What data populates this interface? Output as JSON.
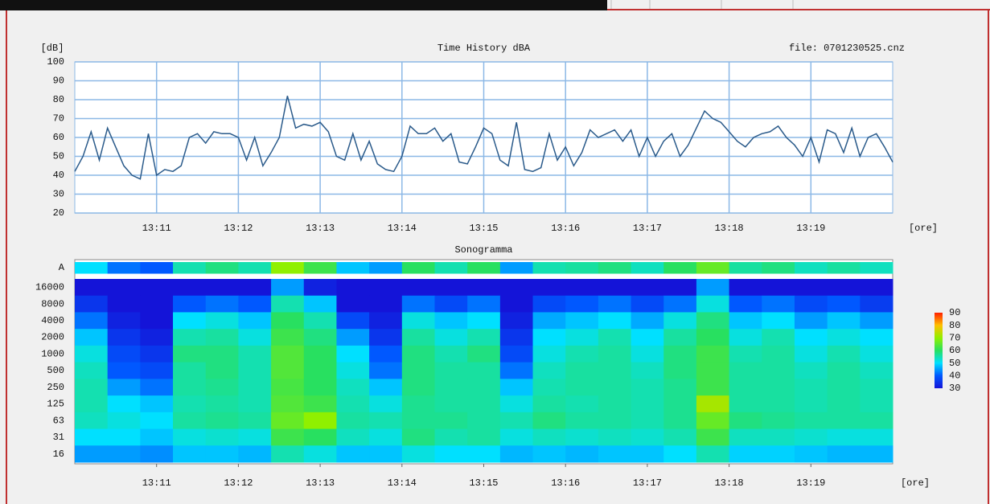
{
  "chart_data": [
    {
      "type": "line",
      "title": "Time History dBA",
      "ylabel": "[dB]",
      "xlabel": "[ore]",
      "annotation": "file: 0701230525.cnz",
      "color": "#2a5a8a",
      "grid": true,
      "x": [
        790,
        790.1,
        790.2,
        790.3,
        790.4,
        790.5,
        790.6,
        790.7,
        790.8,
        790.9,
        791,
        791.1,
        791.2,
        791.3,
        791.4,
        791.5,
        791.6,
        791.7,
        791.8,
        791.9,
        792,
        792.1,
        792.2,
        792.3,
        792.4,
        792.5,
        792.6,
        792.7,
        792.8,
        792.9,
        793,
        793.1,
        793.2,
        793.3,
        793.4,
        793.5,
        793.6,
        793.7,
        793.8,
        793.9,
        794,
        794.1,
        794.2,
        794.3,
        794.4,
        794.5,
        794.6,
        794.7,
        794.8,
        794.9,
        795,
        795.1,
        795.2,
        795.3,
        795.4,
        795.5,
        795.6,
        795.7,
        795.8,
        795.9,
        796,
        796.1,
        796.2,
        796.3,
        796.4,
        796.5,
        796.6,
        796.7,
        796.8,
        796.9,
        797,
        797.1,
        797.2,
        797.3,
        797.4,
        797.5,
        797.6,
        797.7,
        797.8,
        797.9,
        798,
        798.1,
        798.2,
        798.3,
        798.4,
        798.5,
        798.6,
        798.7,
        798.8,
        798.9,
        799,
        799.1,
        799.2,
        799.3,
        799.4,
        799.5,
        799.6,
        799.7,
        799.8,
        799.9,
        800
      ],
      "values": [
        42,
        50,
        63,
        48,
        65,
        55,
        45,
        40,
        38,
        62,
        40,
        43,
        42,
        45,
        60,
        62,
        57,
        63,
        62,
        62,
        60,
        48,
        60,
        45,
        52,
        60,
        82,
        65,
        67,
        66,
        68,
        63,
        50,
        48,
        62,
        48,
        58,
        46,
        43,
        42,
        50,
        66,
        62,
        62,
        65,
        58,
        62,
        47,
        46,
        55,
        65,
        62,
        48,
        45,
        68,
        43,
        42,
        44,
        62,
        48,
        55,
        45,
        52,
        64,
        60,
        62,
        64,
        58,
        64,
        50,
        60,
        50,
        58,
        62,
        50,
        56,
        65,
        74,
        70,
        68,
        63,
        58,
        55,
        60,
        62,
        63,
        66,
        60,
        56,
        50,
        60,
        47,
        64,
        62,
        52,
        65,
        50,
        60,
        62,
        55,
        47
      ],
      "xlim": [
        790,
        800
      ],
      "ylim": [
        20,
        100
      ],
      "xticks": [
        {
          "value": 791,
          "label": "13:11"
        },
        {
          "value": 792,
          "label": "13:12"
        },
        {
          "value": 793,
          "label": "13:13"
        },
        {
          "value": 794,
          "label": "13:14"
        },
        {
          "value": 795,
          "label": "13:15"
        },
        {
          "value": 796,
          "label": "13:16"
        },
        {
          "value": 797,
          "label": "13:17"
        },
        {
          "value": 798,
          "label": "13:18"
        },
        {
          "value": 799,
          "label": "13:19"
        }
      ],
      "yticks": [
        20,
        30,
        40,
        50,
        60,
        70,
        80,
        90,
        100
      ]
    },
    {
      "type": "heatmap",
      "title": "Sonogramma",
      "xlabel": "[ore]",
      "rows": [
        "A",
        "16000",
        "8000",
        "4000",
        "2000",
        "1000",
        "500",
        "250",
        "125",
        "63",
        "31",
        "16"
      ],
      "x": [
        790.2,
        790.6,
        791,
        791.4,
        791.8,
        792.2,
        792.6,
        793,
        793.4,
        793.8,
        794.2,
        794.6,
        795,
        795.4,
        795.8,
        796.2,
        796.6,
        797,
        797.4,
        797.8,
        798.2,
        798.6,
        799,
        799.4,
        799.8
      ],
      "matrix": [
        [
          50,
          42,
          40,
          55,
          58,
          55,
          70,
          62,
          48,
          45,
          60,
          55,
          60,
          45,
          55,
          56,
          58,
          54,
          60,
          66,
          56,
          58,
          54,
          56,
          54
        ],
        [
          30,
          30,
          30,
          30,
          30,
          30,
          45,
          32,
          30,
          30,
          30,
          30,
          30,
          30,
          30,
          30,
          30,
          30,
          30,
          45,
          30,
          30,
          30,
          30,
          30
        ],
        [
          35,
          30,
          30,
          40,
          42,
          40,
          55,
          48,
          30,
          30,
          42,
          38,
          42,
          30,
          38,
          40,
          42,
          38,
          42,
          52,
          40,
          42,
          38,
          40,
          36
        ],
        [
          42,
          32,
          30,
          50,
          52,
          48,
          60,
          55,
          38,
          32,
          52,
          48,
          50,
          32,
          46,
          48,
          50,
          46,
          52,
          58,
          48,
          50,
          45,
          48,
          45
        ],
        [
          48,
          35,
          32,
          55,
          56,
          52,
          62,
          58,
          45,
          35,
          56,
          52,
          55,
          35,
          50,
          52,
          55,
          50,
          56,
          60,
          52,
          55,
          50,
          52,
          50
        ],
        [
          52,
          38,
          35,
          58,
          58,
          55,
          64,
          60,
          50,
          40,
          58,
          55,
          58,
          38,
          52,
          55,
          56,
          52,
          58,
          62,
          55,
          56,
          52,
          55,
          52
        ],
        [
          54,
          40,
          38,
          56,
          58,
          55,
          64,
          60,
          52,
          42,
          58,
          56,
          56,
          42,
          54,
          56,
          56,
          54,
          58,
          62,
          56,
          56,
          54,
          56,
          54
        ],
        [
          55,
          45,
          42,
          56,
          57,
          55,
          63,
          60,
          54,
          48,
          58,
          56,
          56,
          48,
          55,
          56,
          56,
          55,
          57,
          62,
          56,
          56,
          55,
          56,
          55
        ],
        [
          55,
          50,
          48,
          55,
          56,
          55,
          64,
          62,
          55,
          52,
          57,
          56,
          56,
          52,
          56,
          55,
          56,
          55,
          57,
          72,
          56,
          56,
          55,
          56,
          55
        ],
        [
          54,
          52,
          50,
          56,
          57,
          56,
          66,
          70,
          56,
          55,
          57,
          57,
          56,
          55,
          58,
          56,
          56,
          55,
          57,
          66,
          58,
          57,
          56,
          56,
          56
        ],
        [
          50,
          50,
          48,
          52,
          53,
          52,
          62,
          60,
          54,
          52,
          58,
          55,
          56,
          52,
          54,
          53,
          54,
          53,
          55,
          62,
          54,
          54,
          53,
          52,
          52
        ],
        [
          45,
          45,
          44,
          48,
          48,
          47,
          55,
          52,
          48,
          48,
          52,
          50,
          50,
          47,
          48,
          47,
          48,
          48,
          50,
          55,
          49,
          49,
          48,
          47,
          47
        ]
      ],
      "xlim": [
        790,
        800
      ],
      "xticks": [
        {
          "value": 791,
          "label": "13:11"
        },
        {
          "value": 792,
          "label": "13:12"
        },
        {
          "value": 793,
          "label": "13:13"
        },
        {
          "value": 794,
          "label": "13:14"
        },
        {
          "value": 795,
          "label": "13:15"
        },
        {
          "value": 796,
          "label": "13:16"
        },
        {
          "value": 797,
          "label": "13:17"
        },
        {
          "value": 798,
          "label": "13:18"
        },
        {
          "value": 799,
          "label": "13:19"
        }
      ],
      "colorscale": [
        [
          30,
          "#1414d8"
        ],
        [
          40,
          "#0058ff"
        ],
        [
          50,
          "#00e0ff"
        ],
        [
          60,
          "#28e060"
        ],
        [
          70,
          "#90f000"
        ],
        [
          80,
          "#ffc000"
        ],
        [
          90,
          "#ff2000"
        ]
      ],
      "colorbar_ticks": [
        90,
        80,
        70,
        60,
        50,
        40,
        30
      ]
    }
  ]
}
